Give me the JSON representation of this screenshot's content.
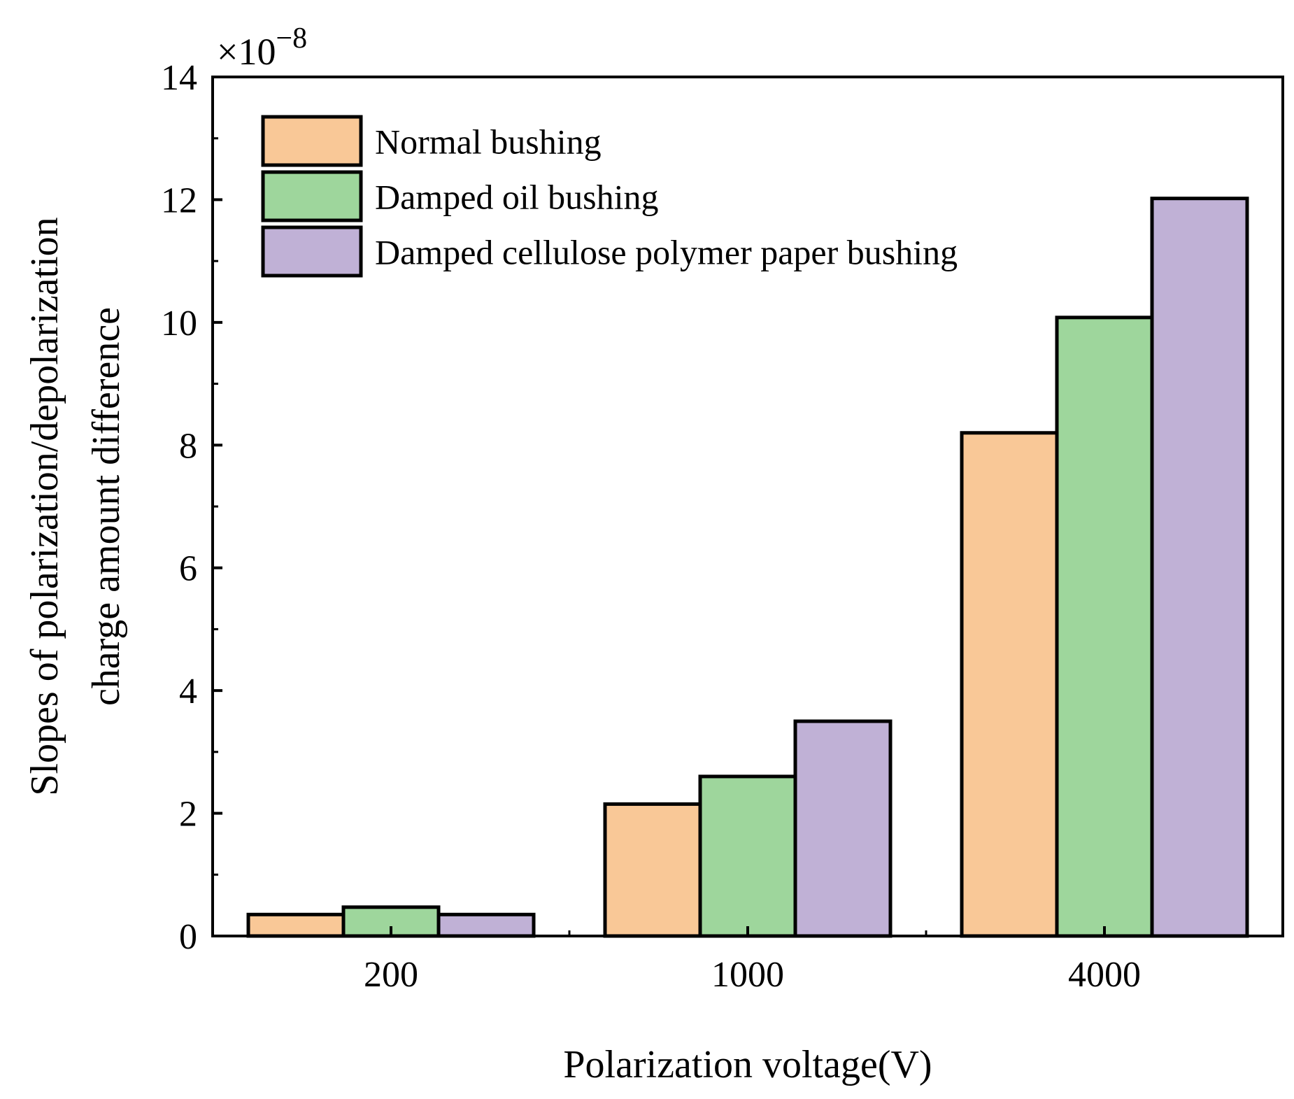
{
  "chart_data": {
    "type": "bar",
    "title": "",
    "xlabel": "Polarization voltage(V)",
    "ylabel_lines": [
      "Slopes of polarization/depolarization",
      "charge amount difference"
    ],
    "y_multiplier_base": "×10",
    "y_multiplier_exponent": "−8",
    "categories": [
      "200",
      "1000",
      "4000"
    ],
    "series": [
      {
        "name": "Normal bushing",
        "color": "#F9C897",
        "values": [
          0.35,
          2.15,
          8.2
        ]
      },
      {
        "name": "Damped oil bushing",
        "color": "#9ED69C",
        "values": [
          0.47,
          2.6,
          10.08
        ]
      },
      {
        "name": "Damped cellulose polymer paper bushing",
        "color": "#C0B1D6",
        "values": [
          0.35,
          3.5,
          12.02
        ]
      }
    ],
    "ylim": [
      0,
      14
    ],
    "yticks": [
      "0",
      "2",
      "4",
      "6",
      "8",
      "10",
      "12",
      "14"
    ],
    "legend_position": "top-left",
    "grid": false
  }
}
